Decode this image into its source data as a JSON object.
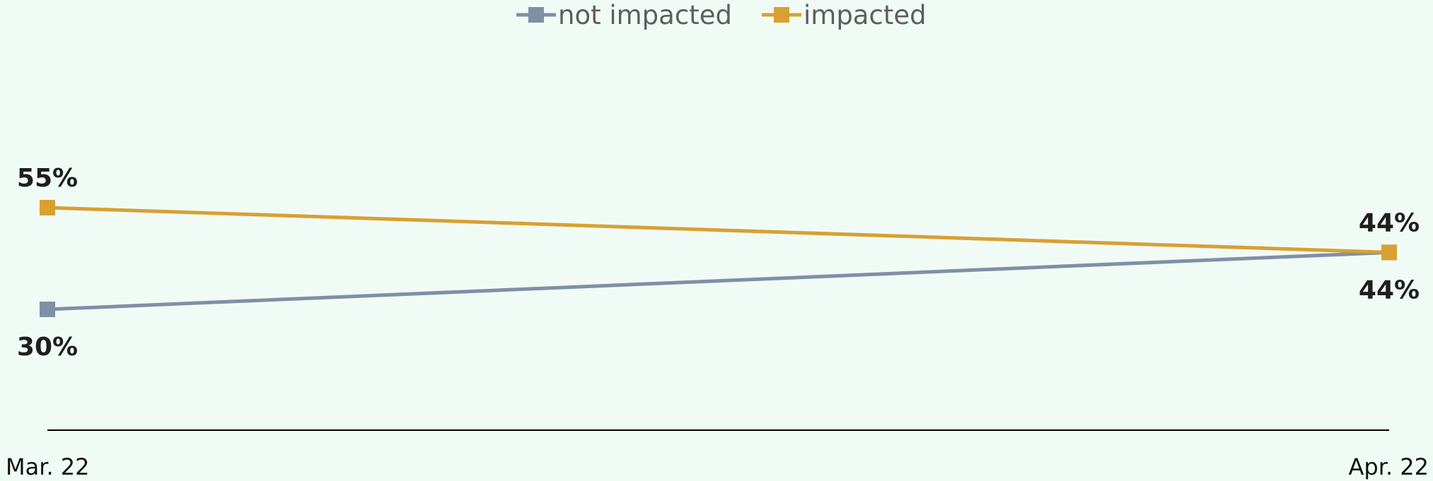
{
  "chart_data": {
    "type": "line",
    "title": "",
    "xlabel": "",
    "ylabel": "",
    "categories": [
      "Mar. 22",
      "Apr. 22"
    ],
    "ylim": [
      0,
      100
    ],
    "grid": false,
    "legend_position": "top-center",
    "series": [
      {
        "name": "not impacted",
        "values": [
          30,
          44
        ],
        "labels": [
          "30%",
          "44%"
        ],
        "label_side": "below",
        "color": "#7f8fa6"
      },
      {
        "name": "impacted",
        "values": [
          55,
          44
        ],
        "labels": [
          "55%",
          "44%"
        ],
        "label_side": "above",
        "color": "#d8a031"
      }
    ],
    "axis_color": "#000000"
  }
}
